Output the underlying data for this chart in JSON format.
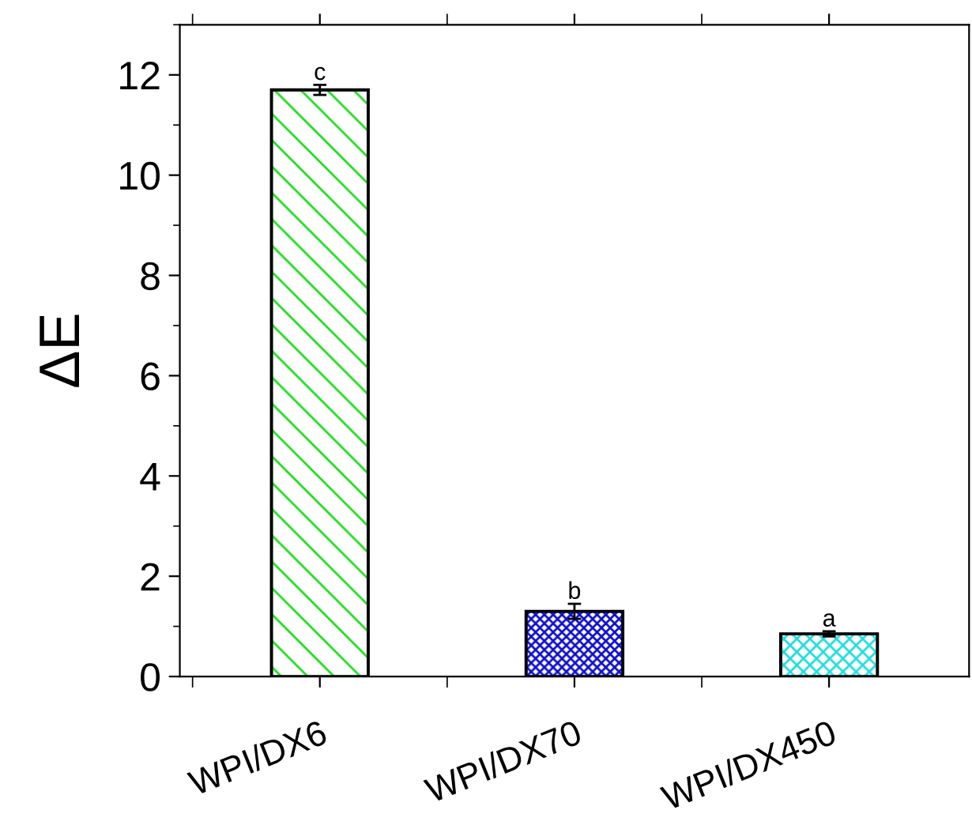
{
  "chart_data": {
    "type": "bar",
    "ylabel": "ΔE",
    "categories": [
      "WPI/DX6",
      "WPI/DX70",
      "WPI/DX450"
    ],
    "values": [
      11.7,
      1.3,
      0.85
    ],
    "errors": [
      0.1,
      0.15,
      0.05
    ],
    "colors": [
      "#22dd22",
      "#1010cc",
      "#22dddd"
    ],
    "ylim": [
      0,
      13
    ],
    "yticks": [
      0,
      2,
      4,
      6,
      8,
      10,
      12
    ],
    "grid": false,
    "legend": false,
    "annotations": [
      "c",
      "b",
      "a"
    ]
  }
}
